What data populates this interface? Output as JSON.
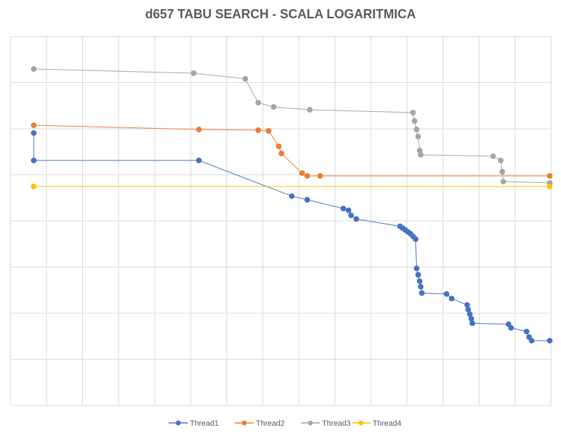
{
  "chart_data": {
    "type": "line",
    "title": "d657 TABU SEARCH - SCALA LOGARITMICA",
    "xlabel": "",
    "ylabel": "",
    "x_tick_labels": "none",
    "y_tick_labels": "none",
    "y_scale": "log",
    "grid": true,
    "legend_position": "bottom",
    "series": [
      {
        "name": "Thread1",
        "color": "#4472C4",
        "points": [
          [
            0.0,
            0.6
          ],
          [
            0.0,
            0.0
          ],
          [
            0.32,
            0.0
          ],
          [
            0.5,
            -0.78
          ],
          [
            0.53,
            -0.86
          ],
          [
            0.6,
            -1.05
          ],
          [
            0.61,
            -1.09
          ],
          [
            0.615,
            -1.2
          ],
          [
            0.625,
            -1.28
          ],
          [
            0.71,
            -1.44
          ],
          [
            0.715,
            -1.48
          ],
          [
            0.72,
            -1.52
          ],
          [
            0.725,
            -1.56
          ],
          [
            0.73,
            -1.6
          ],
          [
            0.735,
            -1.66
          ],
          [
            0.74,
            -1.72
          ],
          [
            0.742,
            -2.36
          ],
          [
            0.745,
            -2.5
          ],
          [
            0.748,
            -2.64
          ],
          [
            0.75,
            -2.76
          ],
          [
            0.752,
            -2.9
          ],
          [
            0.8,
            -2.92
          ],
          [
            0.81,
            -3.02
          ],
          [
            0.84,
            -3.16
          ],
          [
            0.842,
            -3.26
          ],
          [
            0.845,
            -3.36
          ],
          [
            0.848,
            -3.46
          ],
          [
            0.85,
            -3.56
          ],
          [
            0.92,
            -3.58
          ],
          [
            0.925,
            -3.66
          ],
          [
            0.955,
            -3.74
          ],
          [
            0.96,
            -3.86
          ],
          [
            0.965,
            -3.94
          ],
          [
            1.0,
            -3.94
          ]
        ]
      },
      {
        "name": "Thread2",
        "color": "#ED7D31",
        "points": [
          [
            0.0,
            0.0
          ],
          [
            0.32,
            -0.06
          ],
          [
            0.435,
            -0.07
          ],
          [
            0.455,
            -0.08
          ],
          [
            0.475,
            -0.3
          ],
          [
            0.48,
            -0.4
          ],
          [
            0.52,
            -0.68
          ],
          [
            0.53,
            -0.72
          ],
          [
            0.555,
            -0.72
          ],
          [
            1.0,
            -0.72
          ]
        ]
      },
      {
        "name": "Thread3",
        "color": "#A5A5A5",
        "points": [
          [
            0.0,
            0.0
          ],
          [
            0.31,
            -0.06
          ],
          [
            0.41,
            -0.14
          ],
          [
            0.435,
            -0.48
          ],
          [
            0.465,
            -0.54
          ],
          [
            0.535,
            -0.58
          ],
          [
            0.735,
            -0.62
          ],
          [
            0.738,
            -0.74
          ],
          [
            0.742,
            -0.86
          ],
          [
            0.745,
            -0.96
          ],
          [
            0.748,
            -1.16
          ],
          [
            0.75,
            -1.22
          ],
          [
            0.89,
            -1.24
          ],
          [
            0.905,
            -1.3
          ],
          [
            0.908,
            -1.46
          ],
          [
            0.91,
            -1.6
          ],
          [
            1.0,
            -1.62
          ]
        ]
      },
      {
        "name": "Thread4",
        "color": "#FFC000",
        "points": [
          [
            0.0,
            0.0
          ],
          [
            1.0,
            0.0
          ]
        ]
      }
    ],
    "scale_note": "x is normalized run progress (0–1); y values are relative log10 levels per series as drawn (no tick labels printed)"
  }
}
